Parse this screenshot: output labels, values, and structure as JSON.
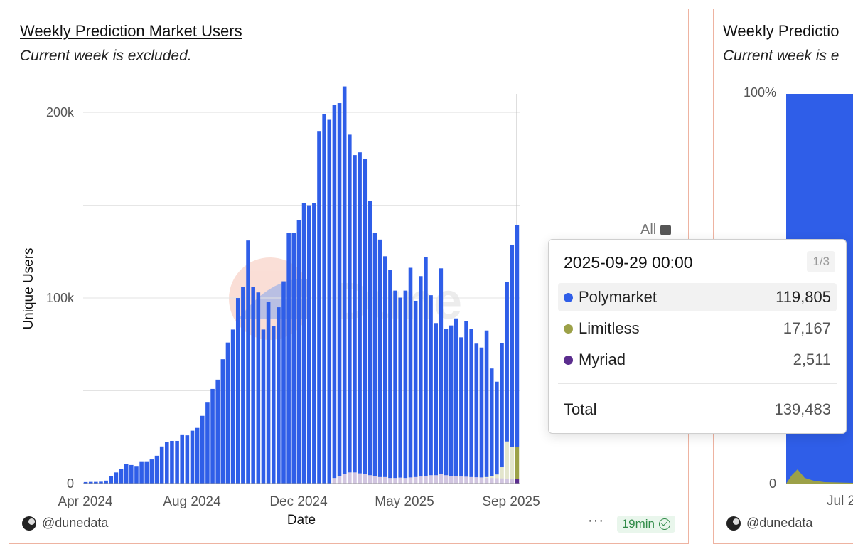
{
  "left_panel": {
    "title": "Weekly Prediction Market Users",
    "subtitle": "Current week is excluded.",
    "legend_toggle": "All",
    "footer_handle": "@dunedata",
    "refresh_badge": "19min",
    "more_menu": "···"
  },
  "right_panel": {
    "title": "Weekly Predictio",
    "subtitle": "Current week is e",
    "ytick_top": "100%",
    "ytick_bottom": "0",
    "xtick": "Jul 2",
    "footer_handle": "@dunedata"
  },
  "tooltip": {
    "date": "2025-09-29 00:00",
    "page": "1/3",
    "rows": [
      {
        "label": "Polymarket",
        "value": "119,805",
        "color": "#2f5ee8"
      },
      {
        "label": "Limitless",
        "value": "17,167",
        "color": "#9ca148"
      },
      {
        "label": "Myriad",
        "value": "2,511",
        "color": "#5b2d8e"
      }
    ],
    "total_label": "Total",
    "total_value": "139,483"
  },
  "colors": {
    "polymarket": "#2f5ee8",
    "limitless": "#9ca148",
    "myriad": "#5b2d8e",
    "card_border": "#eeb3a1"
  },
  "chart_data": {
    "type": "bar",
    "stacked": true,
    "xlabel": "Date",
    "ylabel": "Unique Users",
    "ylim": [
      0,
      210000
    ],
    "yticks": [
      0,
      100000,
      200000
    ],
    "ytick_labels": [
      "0",
      "100k",
      "200k"
    ],
    "xtick_labels": [
      "Apr 2024",
      "Aug 2024",
      "Dec 2024",
      "May 2025",
      "Sep 2025"
    ],
    "grid": true,
    "series": [
      {
        "name": "Polymarket",
        "values": [
          800,
          900,
          900,
          1000,
          1600,
          4000,
          6000,
          8000,
          10500,
          10000,
          9500,
          12000,
          12000,
          13000,
          15000,
          20000,
          22500,
          23000,
          23000,
          26500,
          26000,
          28500,
          30000,
          36500,
          44000,
          51000,
          56000,
          67000,
          76000,
          83000,
          100000,
          106000,
          131000,
          106000,
          103000,
          83000,
          98000,
          85000,
          95000,
          109000,
          135000,
          135000,
          142000,
          151000,
          150000,
          151000,
          190000,
          199000,
          196000,
          201000,
          201000,
          209000,
          182000,
          171000,
          173000,
          170000,
          148000,
          131000,
          128000,
          119000,
          112000,
          101000,
          97000,
          101000,
          113000,
          95000,
          108000,
          118000,
          97000,
          82000,
          111000,
          79000,
          81000,
          85000,
          75000,
          84000,
          80000,
          72000,
          70000,
          79000,
          58000,
          50000,
          67000,
          86000,
          109000,
          119805
        ]
      },
      {
        "name": "Limitless",
        "values": [
          0,
          0,
          0,
          0,
          0,
          0,
          0,
          0,
          0,
          0,
          0,
          0,
          0,
          0,
          0,
          0,
          0,
          0,
          0,
          0,
          0,
          0,
          0,
          0,
          0,
          0,
          0,
          0,
          0,
          0,
          0,
          0,
          0,
          0,
          0,
          0,
          0,
          0,
          0,
          0,
          0,
          0,
          0,
          0,
          0,
          0,
          0,
          0,
          0,
          0,
          0,
          0,
          0,
          0,
          0,
          0,
          0,
          0,
          0,
          0,
          0,
          0,
          0,
          0,
          0,
          0,
          0,
          0,
          0,
          0,
          0,
          0,
          0,
          0,
          0,
          0,
          0,
          0,
          0,
          500,
          1000,
          2000,
          6000,
          20000,
          17167,
          17167
        ]
      },
      {
        "name": "Myriad",
        "values": [
          0,
          0,
          0,
          0,
          0,
          0,
          0,
          0,
          0,
          0,
          0,
          0,
          0,
          0,
          0,
          0,
          0,
          0,
          0,
          0,
          0,
          0,
          0,
          0,
          0,
          0,
          0,
          0,
          0,
          0,
          0,
          0,
          0,
          0,
          0,
          0,
          0,
          0,
          0,
          0,
          0,
          0,
          0,
          0,
          0,
          0,
          0,
          0,
          0,
          3000,
          4000,
          5000,
          6000,
          6000,
          5500,
          5000,
          4500,
          4000,
          3500,
          3500,
          3000,
          3000,
          3200,
          3000,
          3300,
          3500,
          3800,
          4000,
          4500,
          4500,
          5000,
          4500,
          4200,
          4000,
          3800,
          3700,
          3500,
          3400,
          3300,
          3000,
          3000,
          2900,
          2800,
          2700,
          2600,
          2511
        ]
      }
    ]
  }
}
